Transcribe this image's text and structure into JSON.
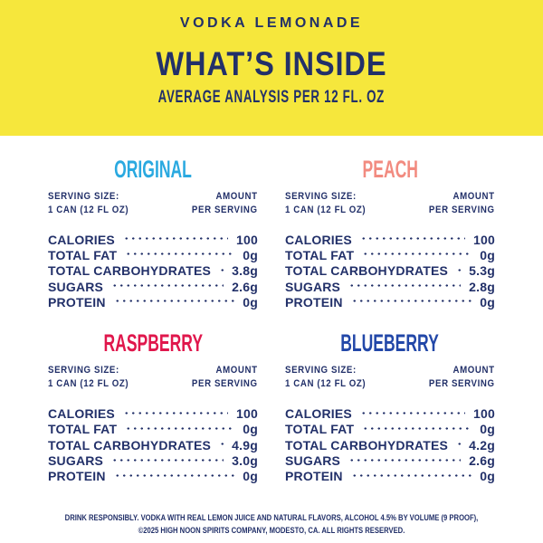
{
  "header": {
    "brand": "VODKA LEMONADE",
    "title": "WHAT’S INSIDE",
    "subtitle": "AVERAGE ANALYSIS PER 12 FL. OZ"
  },
  "serving_header": {
    "size_label": "SERVING SIZE:",
    "size_value": "1 CAN (12 FL OZ)",
    "amount_top": "AMOUNT",
    "amount_bottom": "PER SERVING"
  },
  "panels": [
    {
      "name": "ORIGINAL",
      "color": "#2AA9E0",
      "rows": [
        {
          "label": "CALORIES",
          "value": "100"
        },
        {
          "label": "TOTAL FAT",
          "value": "0g"
        },
        {
          "label": "TOTAL CARBOHYDRATES",
          "value": "3.8g"
        },
        {
          "label": "SUGARS",
          "value": "2.6g"
        },
        {
          "label": "PROTEIN",
          "value": "0g"
        }
      ]
    },
    {
      "name": "PEACH",
      "color": "#F28B80",
      "rows": [
        {
          "label": "CALORIES",
          "value": "100"
        },
        {
          "label": "TOTAL FAT",
          "value": "0g"
        },
        {
          "label": "TOTAL CARBOHYDRATES",
          "value": "5.3g"
        },
        {
          "label": "SUGARS",
          "value": "2.8g"
        },
        {
          "label": "PROTEIN",
          "value": "0g"
        }
      ]
    },
    {
      "name": "RASPBERRY",
      "color": "#E0174C",
      "rows": [
        {
          "label": "CALORIES",
          "value": "100"
        },
        {
          "label": "TOTAL FAT",
          "value": "0g"
        },
        {
          "label": "TOTAL CARBOHYDRATES",
          "value": "4.9g"
        },
        {
          "label": "SUGARS",
          "value": "3.0g"
        },
        {
          "label": "PROTEIN",
          "value": "0g"
        }
      ]
    },
    {
      "name": "BLUEBERRY",
      "color": "#2247A8",
      "rows": [
        {
          "label": "CALORIES",
          "value": "100"
        },
        {
          "label": "TOTAL FAT",
          "value": "0g"
        },
        {
          "label": "TOTAL CARBOHYDRATES",
          "value": "4.2g"
        },
        {
          "label": "SUGARS",
          "value": "2.6g"
        },
        {
          "label": "PROTEIN",
          "value": "0g"
        }
      ]
    }
  ],
  "footer": {
    "line1": "DRINK RESPONSIBLY. VODKA WITH REAL LEMON JUICE AND NATURAL FLAVORS, ALCOHOL 4.5% BY VOLUME (9 PROOF),",
    "line2": "©2025 HIGH NOON SPIRITS COMPANY, MODESTO, CA. ALL RIGHTS RESERVED."
  },
  "colors": {
    "background_yellow": "#F6E73C",
    "text_navy": "#223069",
    "original_blue": "#2AA9E0",
    "peach_coral": "#F28B80",
    "raspberry_pink": "#E0174C",
    "blueberry_blue": "#2247A8"
  }
}
